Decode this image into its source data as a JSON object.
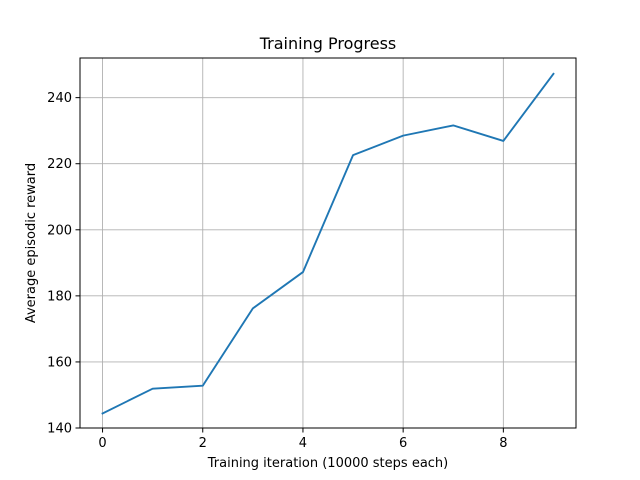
{
  "chart_data": {
    "type": "line",
    "title": "Training Progress",
    "xlabel": "Training iteration (10000 steps each)",
    "ylabel": "Average episodic reward",
    "xlim": [
      -0.45,
      9.45
    ],
    "ylim": [
      140,
      252
    ],
    "xticks": [
      0,
      2,
      4,
      6,
      8
    ],
    "yticks": [
      140,
      160,
      180,
      200,
      220,
      240
    ],
    "grid": true,
    "series": [
      {
        "color": "#1f77b4",
        "x": [
          0,
          1,
          2,
          3,
          4,
          5,
          6,
          7,
          8,
          9
        ],
        "y": [
          144.4,
          151.9,
          152.8,
          176.2,
          187.2,
          222.6,
          228.5,
          231.6,
          226.9,
          247.2
        ]
      }
    ]
  }
}
